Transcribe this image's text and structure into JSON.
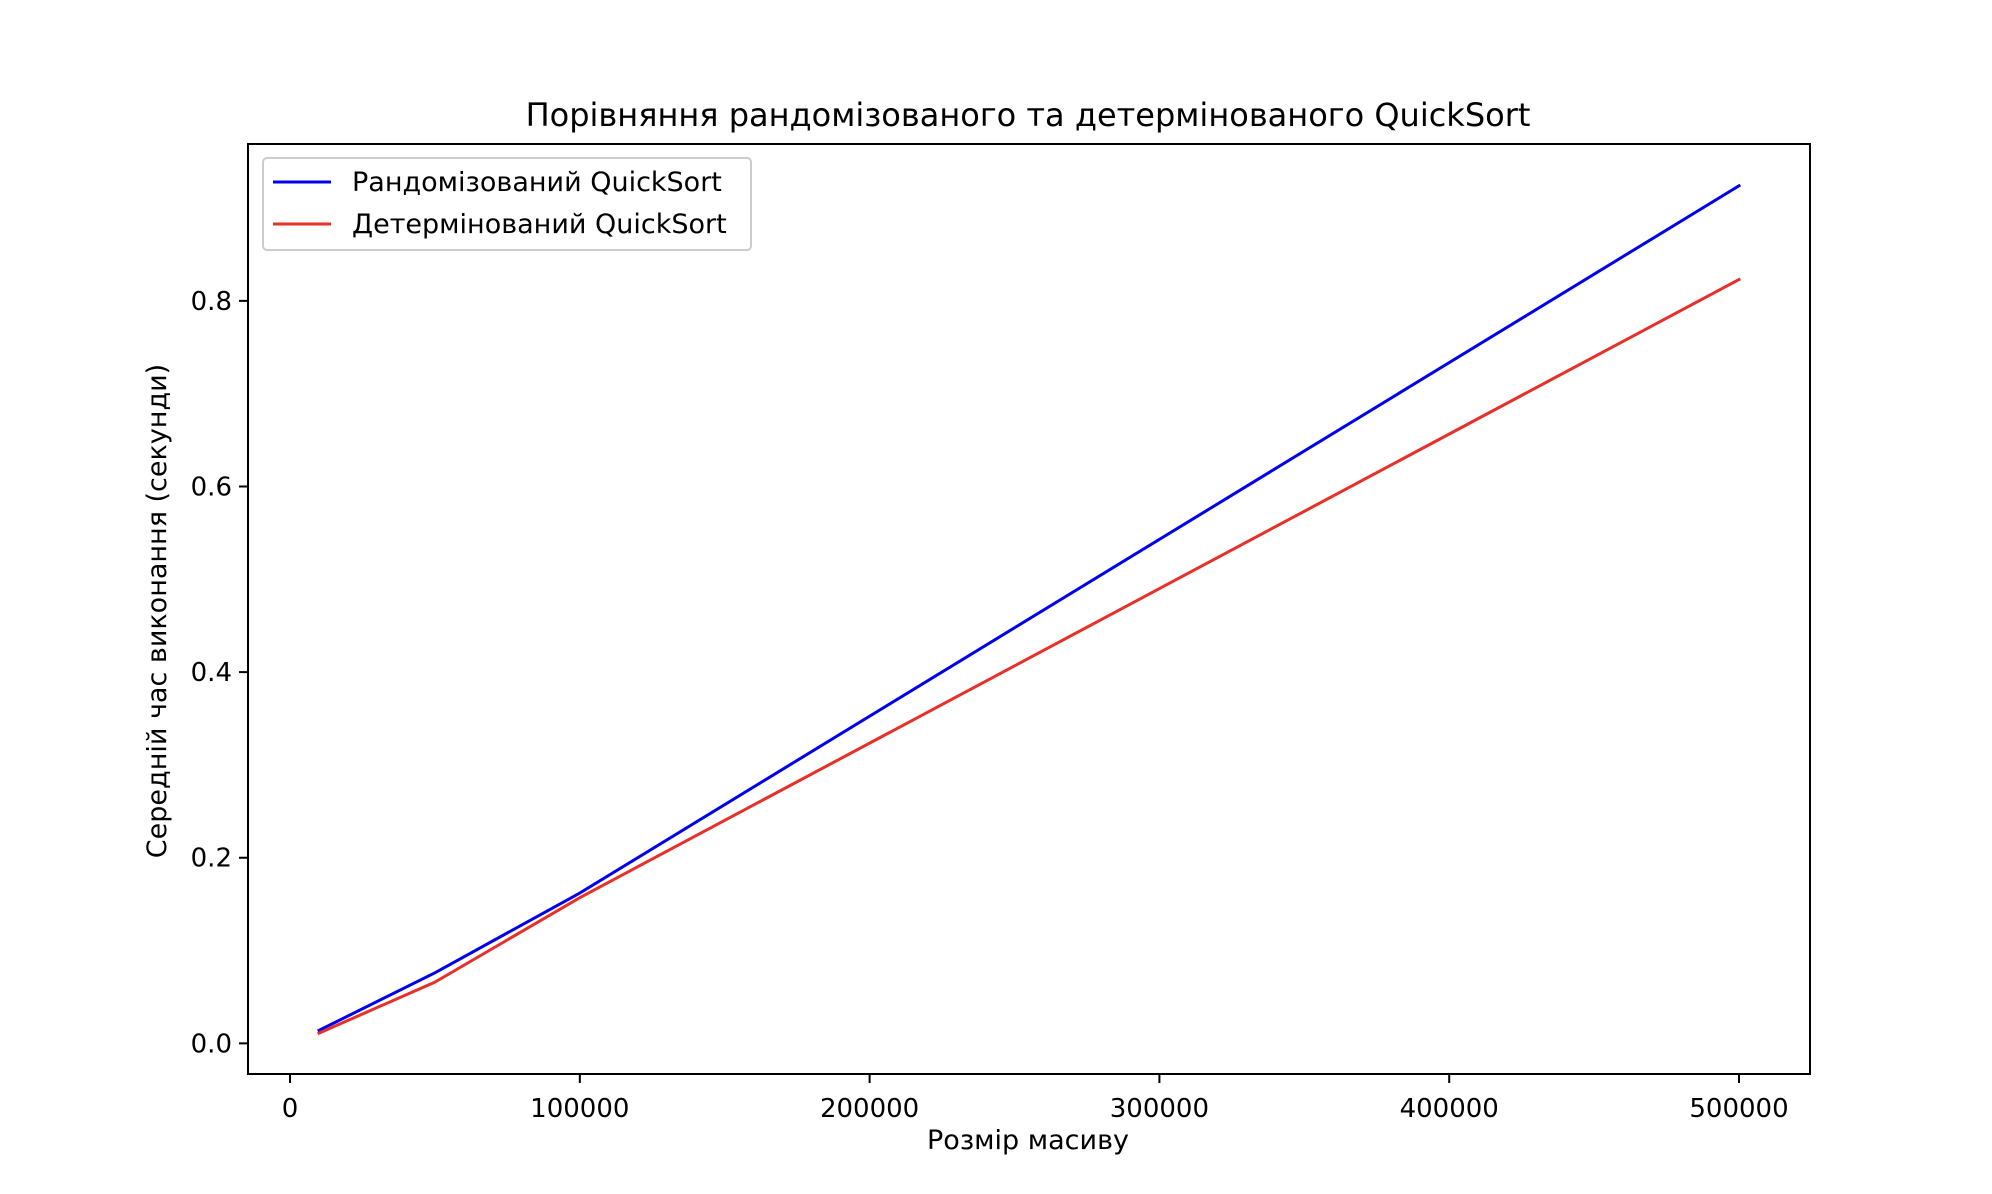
{
  "chart_data": {
    "type": "line",
    "title": "Порівняння рандомізованого та детермінованого QuickSort",
    "xlabel": "Розмір масиву",
    "ylabel": "Середній час виконання (секунди)",
    "x": [
      10000,
      50000,
      100000,
      500000
    ],
    "series": [
      {
        "name": "Рандомізований QuickSort",
        "color": "#0000ee",
        "values": [
          0.014,
          0.076,
          0.162,
          0.924
        ]
      },
      {
        "name": "Детермінований QuickSort",
        "color": "#e8302a",
        "values": [
          0.011,
          0.066,
          0.157,
          0.823
        ]
      }
    ],
    "xlim": [
      -14500,
      524500
    ],
    "ylim": [
      -0.033,
      0.969
    ],
    "xticks": [
      0,
      100000,
      200000,
      300000,
      400000,
      500000
    ],
    "xtick_labels": [
      "0",
      "100000",
      "200000",
      "300000",
      "400000",
      "500000"
    ],
    "yticks": [
      0.0,
      0.2,
      0.4,
      0.6,
      0.8
    ],
    "ytick_labels": [
      "0.0",
      "0.2",
      "0.4",
      "0.6",
      "0.8"
    ],
    "grid": false,
    "legend_position": "top-left"
  }
}
